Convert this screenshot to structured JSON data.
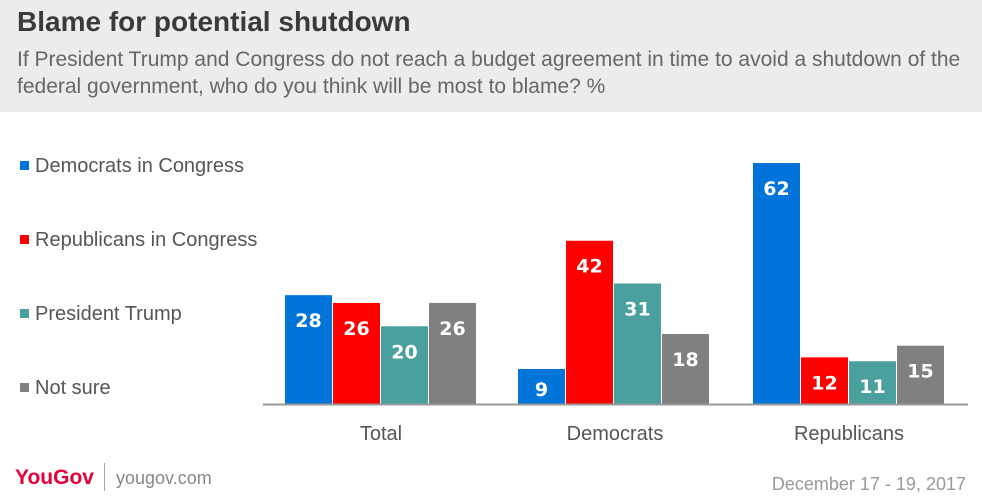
{
  "title": "Blame for potential shutdown",
  "subtitle": "If President Trump and Congress do not reach a budget agreement in time to avoid a shutdown of the federal government, who do you think will be most to blame? %",
  "footer": {
    "logo": "YouGov",
    "url": "yougov.com",
    "date": "December 17 - 19, 2017"
  },
  "colors": {
    "democrats": "#0074d9",
    "republicans": "#ff0000",
    "trump": "#4a9f9f",
    "notsure": "#808080"
  },
  "chart_data": {
    "type": "bar",
    "categories": [
      "Total",
      "Democrats",
      "Republicans"
    ],
    "series": [
      {
        "name": "Democrats in Congress",
        "values": [
          28,
          9,
          62
        ],
        "color": "#0074d9"
      },
      {
        "name": "Republicans in Congress",
        "values": [
          26,
          42,
          12
        ],
        "color": "#ff0000"
      },
      {
        "name": "President Trump",
        "values": [
          20,
          31,
          11
        ],
        "color": "#4a9f9f"
      },
      {
        "name": "Not sure",
        "values": [
          26,
          18,
          15
        ],
        "color": "#808080"
      }
    ],
    "ylim": [
      0,
      62
    ],
    "legend": "left",
    "grid": false,
    "data_labels": true
  }
}
